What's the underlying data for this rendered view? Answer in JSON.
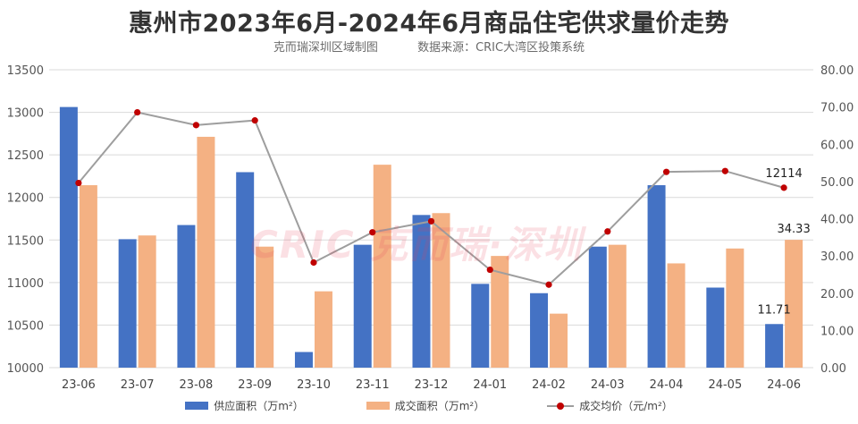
{
  "title": "惠州市2023年6月-2024年6月商品住宅供求量价走势",
  "subtitle": {
    "left": "克而瑞深圳区域制图",
    "right": "数据来源：CRIC大湾区投策系统"
  },
  "watermark": "CRIC 克而瑞·深圳",
  "colors": {
    "supply": "#4472C4",
    "transaction": "#F4B183",
    "price_line": "#9E9E9E",
    "price_marker": "#C00000",
    "grid": "#D9D9D9"
  },
  "legend": {
    "supply": "供应面积（万m²）",
    "transaction": "成交面积（万m²）",
    "price": "成交均价（元/m²）"
  },
  "chart_data": {
    "type": "bar",
    "categories": [
      "23-06",
      "23-07",
      "23-08",
      "23-09",
      "23-10",
      "23-11",
      "23-12",
      "24-01",
      "24-02",
      "24-03",
      "24-04",
      "24-05",
      "24-06"
    ],
    "series": [
      {
        "name": "供应面积（万m²）",
        "axis": "right",
        "type": "bar",
        "values": [
          70.0,
          34.5,
          38.3,
          52.5,
          4.2,
          33.0,
          41.0,
          22.5,
          20.0,
          32.5,
          49.0,
          21.5,
          11.71
        ]
      },
      {
        "name": "成交面积（万m²）",
        "axis": "right",
        "type": "bar",
        "values": [
          49.0,
          35.5,
          62.0,
          32.5,
          20.5,
          54.5,
          41.5,
          30.0,
          14.5,
          33.0,
          28.0,
          32.0,
          34.33
        ]
      },
      {
        "name": "成交均价（元/m²）",
        "axis": "left",
        "type": "line",
        "values": [
          12170,
          13000,
          12850,
          12905,
          11235,
          11590,
          11720,
          11150,
          10975,
          11600,
          12300,
          12310,
          12114
        ]
      }
    ],
    "left_axis": {
      "min": 10000,
      "max": 13500,
      "ticks": [
        "10000",
        "10500",
        "11000",
        "11500",
        "12000",
        "12500",
        "13000",
        "13500"
      ]
    },
    "right_axis": {
      "min": 0,
      "max": 80,
      "ticks": [
        "0.00",
        "10.00",
        "20.00",
        "30.00",
        "40.00",
        "50.00",
        "60.00",
        "70.00",
        "80.00"
      ]
    },
    "data_labels": [
      {
        "series": 0,
        "index": 12,
        "text": "11.71"
      },
      {
        "series": 1,
        "index": 12,
        "text": "34.33"
      },
      {
        "series": 2,
        "index": 12,
        "text": "12114"
      }
    ],
    "grid": true,
    "legend_position": "bottom"
  }
}
